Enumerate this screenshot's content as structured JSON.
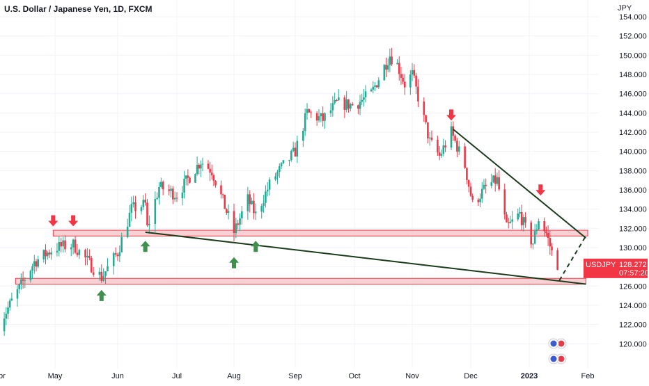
{
  "header": {
    "title": "U.S. Dollar / Japanese Yen, 1D, FXCM",
    "currency": "JPY"
  },
  "price_tag": {
    "symbol": "USDJPY",
    "price": "128.272",
    "countdown": "07:57:20",
    "color": "#f23645"
  },
  "colors": {
    "up": "#22ab94",
    "down": "#f23645",
    "zone_fill": "#f7c5c9",
    "zone_border": "#f23645",
    "trendline": "#1b3b1b",
    "arrow_down": "#f23645",
    "arrow_up": "#3f8f4f"
  },
  "chart_data": {
    "type": "candlestick",
    "ylim": [
      118.5,
      154.8
    ],
    "y_ticks": [
      "154.000",
      "152.000",
      "150.000",
      "148.000",
      "146.000",
      "144.000",
      "142.000",
      "140.000",
      "138.000",
      "136.000",
      "134.000",
      "132.000",
      "130.000",
      "128.000",
      "126.000",
      "124.000",
      "122.000",
      "120.000"
    ],
    "x_labels": [
      "pr",
      "May",
      "Jun",
      "Jul",
      "Aug",
      "Sep",
      "Oct",
      "Nov",
      "Dec",
      "2023",
      "Feb"
    ],
    "x_label_dates": [
      "2022-04-01",
      "2022-05-01",
      "2022-06-01",
      "2022-07-01",
      "2022-08-01",
      "2022-09-01",
      "2022-10-01",
      "2022-11-01",
      "2022-12-01",
      "2023-01-01",
      "2023-02-01"
    ],
    "price_path": [
      [
        "2022-04-01",
        122.0
      ],
      [
        "2022-04-20",
        128.5
      ],
      [
        "2022-05-01",
        130.0
      ],
      [
        "2022-05-10",
        130.3
      ],
      [
        "2022-05-24",
        126.9
      ],
      [
        "2022-06-01",
        129.5
      ],
      [
        "2022-06-08",
        134.0
      ],
      [
        "2022-06-15",
        134.5
      ],
      [
        "2022-06-16",
        132.0
      ],
      [
        "2022-06-22",
        136.3
      ],
      [
        "2022-07-01",
        135.5
      ],
      [
        "2022-07-14",
        139.0
      ],
      [
        "2022-07-20",
        138.0
      ],
      [
        "2022-08-01",
        131.6
      ],
      [
        "2022-08-08",
        135.0
      ],
      [
        "2022-08-12",
        133.4
      ],
      [
        "2022-08-20",
        137.0
      ],
      [
        "2022-09-01",
        140.0
      ],
      [
        "2022-09-07",
        144.0
      ],
      [
        "2022-09-15",
        143.3
      ],
      [
        "2022-09-22",
        145.0
      ],
      [
        "2022-10-01",
        144.8
      ],
      [
        "2022-10-10",
        146.0
      ],
      [
        "2022-10-20",
        150.0
      ],
      [
        "2022-10-24",
        149.0
      ],
      [
        "2022-10-28",
        147.0
      ],
      [
        "2022-11-01",
        148.0
      ],
      [
        "2022-11-10",
        141.0
      ],
      [
        "2022-11-15",
        139.5
      ],
      [
        "2022-11-21",
        142.0
      ],
      [
        "2022-11-28",
        138.5
      ],
      [
        "2022-12-02",
        134.5
      ],
      [
        "2022-12-10",
        136.5
      ],
      [
        "2022-12-15",
        137.0
      ],
      [
        "2022-12-20",
        132.0
      ],
      [
        "2022-12-27",
        133.5
      ],
      [
        "2023-01-01",
        131.0
      ],
      [
        "2023-01-03",
        130.5
      ],
      [
        "2023-01-06",
        133.0
      ],
      [
        "2023-01-10",
        131.5
      ],
      [
        "2023-01-13",
        129.5
      ],
      [
        "2023-01-16",
        128.3
      ]
    ],
    "horizontal_zones": [
      {
        "from": "2022-04-30",
        "to": "2023-02-01",
        "low": 131.2,
        "high": 131.8
      },
      {
        "from": "2022-04-10",
        "to": "2023-01-31",
        "low": 126.2,
        "high": 126.8
      }
    ],
    "trendlines": [
      {
        "points": [
          [
            "2022-06-15",
            131.6
          ],
          [
            "2023-01-31",
            126.2
          ]
        ],
        "style": "solid"
      },
      {
        "points": [
          [
            "2022-11-22",
            142.3
          ],
          [
            "2023-01-31",
            131.0
          ]
        ],
        "style": "solid"
      },
      {
        "points": [
          [
            "2023-01-17",
            126.6
          ],
          [
            "2023-01-31",
            131.2
          ]
        ],
        "style": "dashed"
      }
    ],
    "signal_arrows": [
      {
        "date": "2022-04-30",
        "price": 132.2,
        "dir": "down"
      },
      {
        "date": "2022-05-10",
        "price": 132.2,
        "dir": "down"
      },
      {
        "date": "2022-06-15",
        "price": 130.7,
        "dir": "up"
      },
      {
        "date": "2022-08-01",
        "price": 129.0,
        "dir": "up"
      },
      {
        "date": "2022-08-12",
        "price": 130.7,
        "dir": "up"
      },
      {
        "date": "2022-05-24",
        "price": 125.6,
        "dir": "up"
      },
      {
        "date": "2022-11-21",
        "price": 143.2,
        "dir": "down"
      },
      {
        "date": "2023-01-07",
        "price": 135.4,
        "dir": "down"
      }
    ],
    "last_price": 128.272
  }
}
